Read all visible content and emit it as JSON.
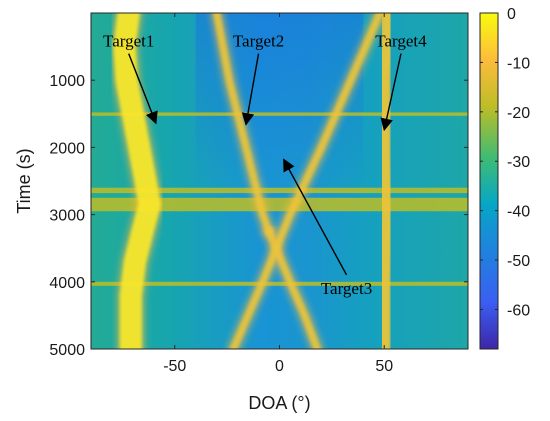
{
  "chart_data": {
    "type": "heatmap",
    "title": "",
    "xlabel": "DOA (°)",
    "ylabel": "Time (s)",
    "xlim": [
      -90,
      90
    ],
    "ylim": [
      0,
      5000
    ],
    "y_reversed": true,
    "xticks": [
      -50,
      0,
      50
    ],
    "yticks": [
      1000,
      2000,
      3000,
      4000,
      5000
    ],
    "colorbar": {
      "range": [
        -68,
        0
      ],
      "ticks": [
        0,
        -10,
        -20,
        -30,
        -40,
        -50,
        -60
      ],
      "colormap": "parula"
    },
    "tracks": [
      {
        "t": [
          0,
          500,
          1000,
          1500,
          2000,
          2500,
          2850,
          3200,
          3700,
          4200,
          5000
        ],
        "doa": [
          -72,
          -74,
          -73,
          -70,
          -67,
          -64,
          -62,
          -65,
          -69,
          -71,
          -71
        ]
      },
      {
        "t": [
          0,
          1000,
          2000,
          3000,
          3250
        ],
        "doa": [
          -30,
          -24,
          -16,
          -8,
          -5
        ]
      },
      {
        "t": [
          3250,
          4000,
          4500,
          5000
        ],
        "doa": [
          -5,
          5,
          12,
          18
        ]
      },
      {
        "t": [
          0,
          1000,
          2000,
          3000,
          4000,
          5000
        ],
        "doa": [
          48,
          34,
          20,
          5,
          -8,
          -22
        ]
      },
      {
        "t": [
          0,
          1000,
          2000,
          3000,
          4000,
          5000
        ],
        "doa": [
          52,
          50,
          50,
          51,
          50,
          50
        ]
      }
    ],
    "background_bands": [
      {
        "t": [
          2750,
          2950
        ],
        "level": -26
      },
      {
        "t": [
          1480,
          1530
        ],
        "level": -28
      },
      {
        "t": [
          4000,
          4060
        ],
        "level": -24
      },
      {
        "t": [
          2600,
          2680
        ],
        "level": -30
      }
    ],
    "annotations": [
      {
        "text": "Target1",
        "label_at": [
          -72,
          500
        ],
        "arrow_to": [
          -59,
          1640
        ]
      },
      {
        "text": "Target2",
        "label_at": [
          -10,
          500
        ],
        "arrow_to": [
          -16,
          1660
        ]
      },
      {
        "text": "Target3",
        "label_at": [
          32,
          4180
        ],
        "arrow_to": [
          2,
          2180
        ]
      },
      {
        "text": "Target4",
        "label_at": [
          58,
          500
        ],
        "arrow_to": [
          50,
          1740
        ]
      }
    ]
  }
}
